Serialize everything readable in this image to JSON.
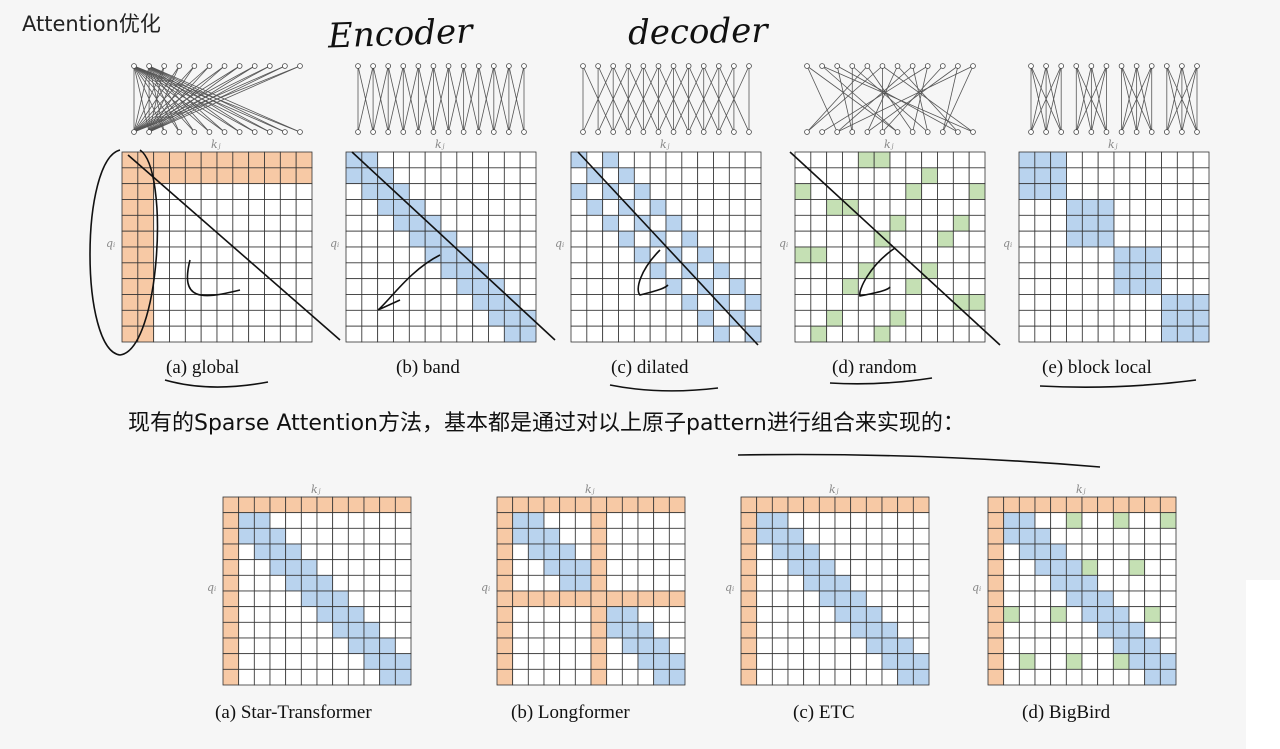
{
  "header": {
    "title": "Attention优化",
    "handwritten_encoder": "Encoder",
    "handwritten_decoder": "decoder"
  },
  "matrix_labels": {
    "k": "kⱼ",
    "q": "qᵢ"
  },
  "atomic_patterns": [
    {
      "caption": "(a)  global",
      "type": "global"
    },
    {
      "caption": "(b)  band",
      "type": "band"
    },
    {
      "caption": "(c)  dilated",
      "type": "dilated"
    },
    {
      "caption": "(d)  random",
      "type": "random"
    },
    {
      "caption": "(e)  block local",
      "type": "block_local"
    }
  ],
  "sentence": "现有的Sparse Attention方法，基本都是通过对以上原子pattern进行组合来实现的：",
  "combined_patterns": [
    {
      "caption": "(a)  Star-Transformer",
      "type": "star"
    },
    {
      "caption": "(b)  Longformer",
      "type": "longformer"
    },
    {
      "caption": "(c)  ETC",
      "type": "etc"
    },
    {
      "caption": "(d)  BigBird",
      "type": "bigbird"
    }
  ],
  "colors": {
    "global": "#f7c9a5",
    "band": "#b9d3ee",
    "random": "#c5e0b4",
    "grid_line": "#333333",
    "background": "#f6f6f6"
  }
}
